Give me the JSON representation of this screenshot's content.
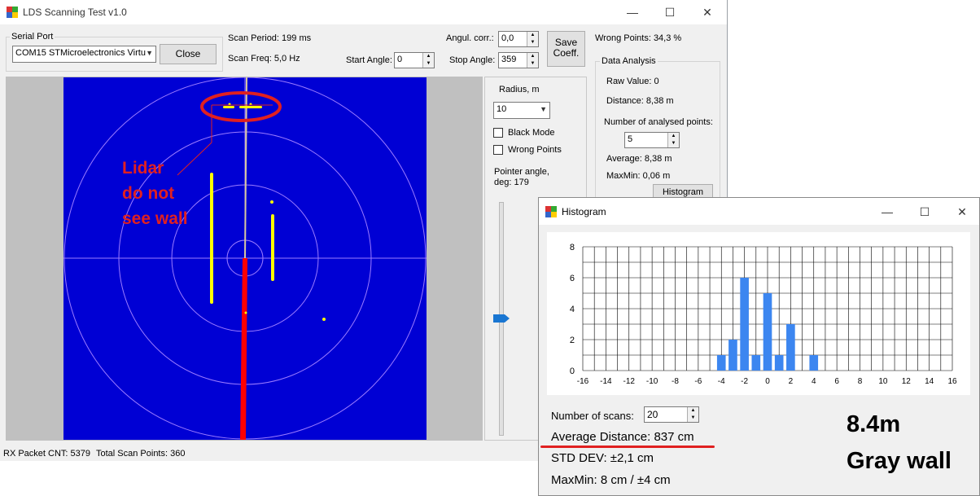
{
  "main_window": {
    "title": "LDS Scanning Test v1.0",
    "controls": {
      "minimize": "—",
      "maximize": "☐",
      "close": "✕"
    }
  },
  "serial_port": {
    "group_label": "Serial Port",
    "selected_port": "COM15 STMicroelectronics Virtu",
    "close_label": "Close"
  },
  "scan": {
    "period_text": "Scan Period: 199 ms",
    "freq_text": "Scan Freq: 5,0 Hz",
    "start_angle_label": "Start Angle:",
    "start_angle_value": "0",
    "angul_corr_label": "Angul. corr.:",
    "angul_corr_value": "0,0",
    "stop_angle_label": "Stop Angle:",
    "stop_angle_value": "359",
    "save_coeff_label_1": "Save",
    "save_coeff_label_2": "Coeff.",
    "wrong_points_text": "Wrong Points: 34,3 %"
  },
  "data_analysis": {
    "group_label": "Data Analysis",
    "raw_value": "Raw Value: 0",
    "distance": "Distance: 8,38 m",
    "num_points_label": "Number of analysed points:",
    "num_points_value": "5",
    "average": "Average: 8,38 m",
    "maxmin": "MaxMin: 0,06 m",
    "histogram_button": "Histogram"
  },
  "side_panel": {
    "radius_label": "Radius, m",
    "radius_value": "10",
    "black_mode_label": "Black Mode",
    "wrong_points_label": "Wrong Points",
    "pointer_angle_label_1": "Pointer angle,",
    "pointer_angle_label_2": "deg: 179",
    "pointer_slider_level": 0.5
  },
  "status_bar": {
    "rx_packet": "RX Packet CNT: 5379",
    "total_points": "Total Scan Points: 360"
  },
  "annotations": {
    "lidar_line1": "Lidar",
    "lidar_line2": "do not",
    "lidar_line3": "see wall",
    "distance_caption": "8.4m",
    "wall_caption": "Gray wall"
  },
  "histogram_window": {
    "title": "Histogram",
    "controls": {
      "minimize": "—",
      "maximize": "☐",
      "close": "✕"
    },
    "num_scans_label": "Number of scans:",
    "num_scans_value": "20",
    "average_distance": "Average Distance: 837 cm",
    "std_dev": "STD DEV: ±2,1 cm",
    "maxmin": "MaxMin: 8 cm / ±4 cm"
  },
  "colors": {
    "scan_background": "#0000d4",
    "scan_points": "#ffff00",
    "pointer_line": "#ff0000",
    "bar_fill": "#3c86f0",
    "annotation_red": "#e02020"
  },
  "chart_data": {
    "type": "bar",
    "x": [
      -4,
      -3,
      -2,
      -1,
      0,
      1,
      2,
      4
    ],
    "values": [
      1,
      2,
      6,
      1,
      5,
      1,
      3,
      1
    ],
    "x_ticks": [
      "-16",
      "-14",
      "-12",
      "-10",
      "-8",
      "-6",
      "-4",
      "-2",
      "0",
      "2",
      "4",
      "6",
      "8",
      "10",
      "12",
      "14",
      "16"
    ],
    "y_ticks": [
      "0",
      "2",
      "4",
      "6",
      "8"
    ],
    "xlim": [
      -16,
      16
    ],
    "ylim": [
      0,
      8
    ],
    "grid": true
  }
}
